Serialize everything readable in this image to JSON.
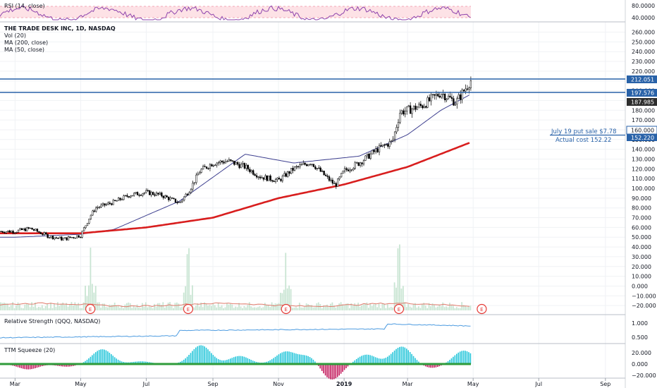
{
  "colors": {
    "candle": "#000000",
    "ma200": "#d81e1e",
    "ma50": "#3d3f8f",
    "hline": "#2962a8",
    "rsi_line": "#8e44ad",
    "rsi_band": "#fde2e6",
    "volume": "#c9e5d3",
    "vol_ma": "#e07b6c",
    "rs_line": "#4c9be0",
    "squeeze_pos": "#26c6da",
    "squeeze_neg": "#c2185b",
    "squeeze_zero": "#2e9b3a",
    "earnings": "#e53935",
    "grid": "#f0f2f5",
    "price_label_bg": "#2d2d2d"
  },
  "rsi_panel": {
    "title": "RSI (14, close)",
    "axis_labels": [
      "80.0000",
      "60.0000",
      "40.0000"
    ]
  },
  "main_panel": {
    "symbol": "THE TRADE DESK INC, 1D, NASDAQ",
    "indicators": [
      "Vol (20)",
      "MA (200, close)",
      "MA (50, close)"
    ],
    "price_axis": [
      "260.000",
      "250.000",
      "240.000",
      "230.000",
      "220.000",
      "210.000",
      "200.000",
      "190.000",
      "180.000",
      "170.000",
      "160.000",
      "150.000",
      "140.000",
      "130.000",
      "120.000",
      "110.000",
      "100.000",
      "90.000",
      "80.000",
      "70.000",
      "60.000",
      "50.000",
      "40.000",
      "30.000",
      "20.000",
      "10.000",
      "0.000",
      "−10.000",
      "−20.000"
    ],
    "labels": {
      "resistance": "212.051",
      "support": "197.576",
      "last": "187.985",
      "put_strike": "160.000",
      "actual_cost": "152.220"
    },
    "annotations": {
      "put_sale": "July 19 put sale $7.78",
      "actual_cost": "Actual cost 152.22"
    },
    "earnings_marker": "E"
  },
  "rs_panel": {
    "title": "Relative Strength (QQQ, NASDAQ)",
    "axis_labels": [
      "1.000",
      "0.500"
    ]
  },
  "squeeze_panel": {
    "title": "TTM Squeeze (20)",
    "axis_labels": [
      "20.000",
      "0.000",
      "−20.000"
    ]
  },
  "time_axis": [
    "Mar",
    "May",
    "Jul",
    "Sep",
    "Nov",
    "2019",
    "Mar",
    "May",
    "Jul",
    "Sep"
  ],
  "chart_data": {
    "type": "line",
    "title": "THE TRADE DESK INC, 1D, NASDAQ",
    "ylim": [
      -20,
      265
    ],
    "horizontal_levels": [
      212.051,
      197.576
    ],
    "last_price": 187.985,
    "annotation_levels": [
      160.0,
      152.22
    ],
    "series": [
      {
        "name": "close",
        "x": [
          "2018-03-01",
          "2018-03-15",
          "2018-04-01",
          "2018-04-15",
          "2018-05-01",
          "2018-05-10",
          "2018-05-15",
          "2018-06-01",
          "2018-06-15",
          "2018-07-01",
          "2018-07-15",
          "2018-08-01",
          "2018-08-10",
          "2018-08-20",
          "2018-09-01",
          "2018-09-15",
          "2018-10-01",
          "2018-10-15",
          "2018-11-01",
          "2018-11-15",
          "2018-12-01",
          "2018-12-15",
          "2018-12-24",
          "2019-01-01",
          "2019-01-15",
          "2019-02-01",
          "2019-02-15",
          "2019-02-22",
          "2019-03-01",
          "2019-03-15",
          "2019-04-01",
          "2019-04-15",
          "2019-05-01",
          "2019-05-07",
          "2019-05-10"
        ],
        "values": [
          56,
          59,
          51,
          48,
          52,
          72,
          80,
          86,
          93,
          96,
          93,
          85,
          98,
          118,
          126,
          128,
          122,
          112,
          108,
          120,
          127,
          112,
          103,
          118,
          126,
          140,
          148,
          178,
          180,
          185,
          198,
          188,
          214,
          224,
          186
        ]
      },
      {
        "name": "MA (200, close)",
        "x": [
          "2018-03-01",
          "2018-05-01",
          "2018-07-01",
          "2018-09-01",
          "2018-11-01",
          "2019-01-01",
          "2019-03-01",
          "2019-05-10"
        ],
        "values": [
          54,
          54,
          60,
          70,
          90,
          104,
          122,
          152
        ]
      },
      {
        "name": "MA (50, close)",
        "x": [
          "2018-03-01",
          "2018-05-01",
          "2018-06-01",
          "2018-08-01",
          "2018-10-01",
          "2018-11-15",
          "2019-01-15",
          "2019-03-01",
          "2019-04-01",
          "2019-05-10"
        ],
        "values": [
          50,
          53,
          58,
          87,
          135,
          126,
          133,
          155,
          180,
          203
        ]
      }
    ],
    "earnings_dates": [
      "2018-05-10",
      "2018-08-09",
      "2018-11-08",
      "2019-02-21",
      "2019-05-09"
    ],
    "rsi": {
      "ylim": [
        35,
        80
      ],
      "band": [
        30,
        70
      ]
    },
    "relative_strength": {
      "ylim": [
        0.3,
        1.25
      ]
    },
    "squeeze": {
      "ylim": [
        -25,
        30
      ]
    },
    "xlabel": "",
    "ylabel": ""
  }
}
